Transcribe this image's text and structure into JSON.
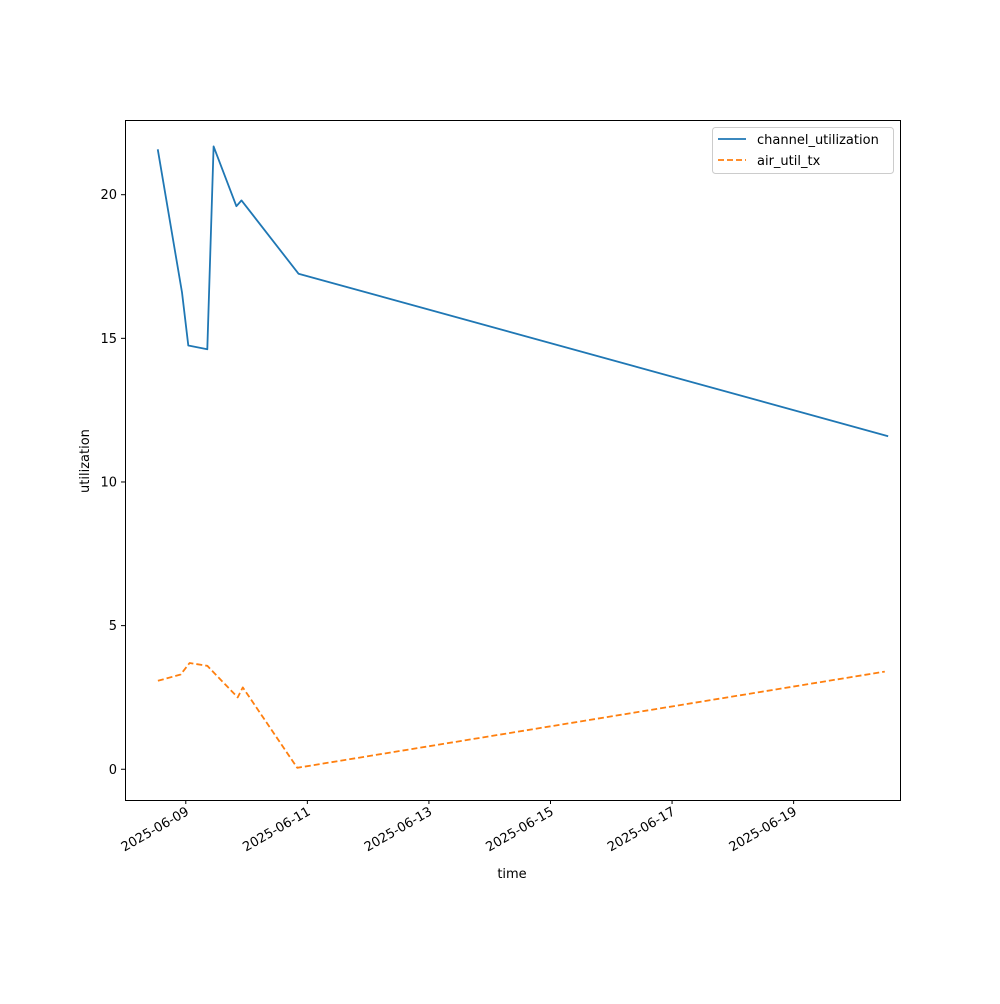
{
  "chart_data": {
    "type": "line",
    "xlabel": "time",
    "ylabel": "utilization",
    "x_type": "datetime",
    "xlim": [
      "2025-06-08T00:00",
      "2025-06-20T18:00"
    ],
    "ylim": [
      -1.07,
      22.6
    ],
    "x_ticks": [
      "2025-06-09",
      "2025-06-11",
      "2025-06-13",
      "2025-06-15",
      "2025-06-17",
      "2025-06-19"
    ],
    "y_ticks": [
      0,
      5,
      10,
      15,
      20
    ],
    "grid": false,
    "legend_position": "top-right",
    "series": [
      {
        "name": "channel_utilization",
        "color": "#1f77b4",
        "style": "solid",
        "points": [
          {
            "x": "2025-06-08T13:00",
            "y": 21.55
          },
          {
            "x": "2025-06-08T22:30",
            "y": 16.6
          },
          {
            "x": "2025-06-09T01:00",
            "y": 14.75
          },
          {
            "x": "2025-06-09T08:30",
            "y": 14.62
          },
          {
            "x": "2025-06-09T11:00",
            "y": 21.68
          },
          {
            "x": "2025-06-09T20:00",
            "y": 19.6
          },
          {
            "x": "2025-06-09T22:00",
            "y": 19.8
          },
          {
            "x": "2025-06-10T20:30",
            "y": 17.25
          },
          {
            "x": "2025-06-20T13:00",
            "y": 11.6
          }
        ]
      },
      {
        "name": "air_util_tx",
        "color": "#ff7f0e",
        "style": "dashed",
        "points": [
          {
            "x": "2025-06-08T13:00",
            "y": 3.08
          },
          {
            "x": "2025-06-08T22:00",
            "y": 3.3
          },
          {
            "x": "2025-06-09T01:30",
            "y": 3.7
          },
          {
            "x": "2025-06-09T08:30",
            "y": 3.6
          },
          {
            "x": "2025-06-09T20:30",
            "y": 2.5
          },
          {
            "x": "2025-06-09T22:30",
            "y": 2.85
          },
          {
            "x": "2025-06-10T20:00",
            "y": 0.05
          },
          {
            "x": "2025-06-20T12:00",
            "y": 3.4
          }
        ]
      }
    ]
  }
}
